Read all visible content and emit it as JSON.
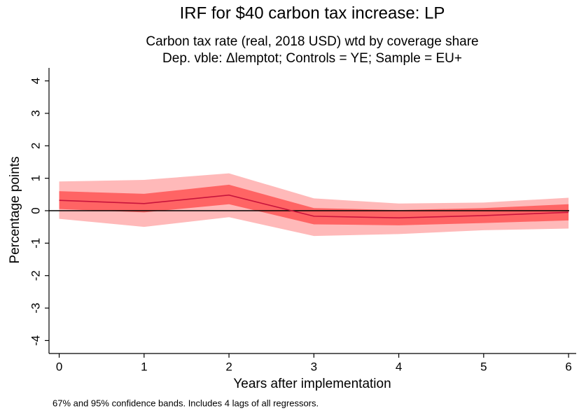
{
  "chart_data": {
    "type": "irf",
    "title": "IRF for $40 carbon tax increase: LP",
    "subtitle": [
      "Carbon tax rate (real, 2018 USD) wtd by coverage share",
      "Dep. vble: Δlemptot; Controls = YE; Sample = EU+"
    ],
    "x_label": "Years after implementation",
    "y_label": "Percentage points",
    "note": "67% and 95% confidence bands. Includes 4 lags of all regressors.",
    "x": [
      0,
      1,
      2,
      3,
      4,
      5,
      6
    ],
    "values": [
      0.32,
      0.22,
      0.48,
      -0.17,
      -0.22,
      -0.15,
      -0.05
    ],
    "ci67_lower": [
      0.05,
      -0.05,
      0.2,
      -0.42,
      -0.45,
      -0.38,
      -0.3
    ],
    "ci67_upper": [
      0.6,
      0.52,
      0.8,
      0.08,
      0.02,
      0.08,
      0.2
    ],
    "ci95_lower": [
      -0.25,
      -0.5,
      -0.2,
      -0.78,
      -0.72,
      -0.6,
      -0.55
    ],
    "ci95_upper": [
      0.9,
      0.95,
      1.15,
      0.38,
      0.22,
      0.25,
      0.4
    ],
    "color": "#c8143c",
    "ci67_color": "#ff6464",
    "ci95_color": "#ffb9b9",
    "yline": 0,
    "xlim": [
      -0.12,
      6.09
    ],
    "ylim": [
      -4.4,
      4.4
    ],
    "xticks": [
      0,
      1,
      2,
      3,
      4,
      5,
      6
    ],
    "yticks": [
      -4,
      -3,
      -2,
      -1,
      0,
      1,
      2,
      3,
      4
    ]
  }
}
